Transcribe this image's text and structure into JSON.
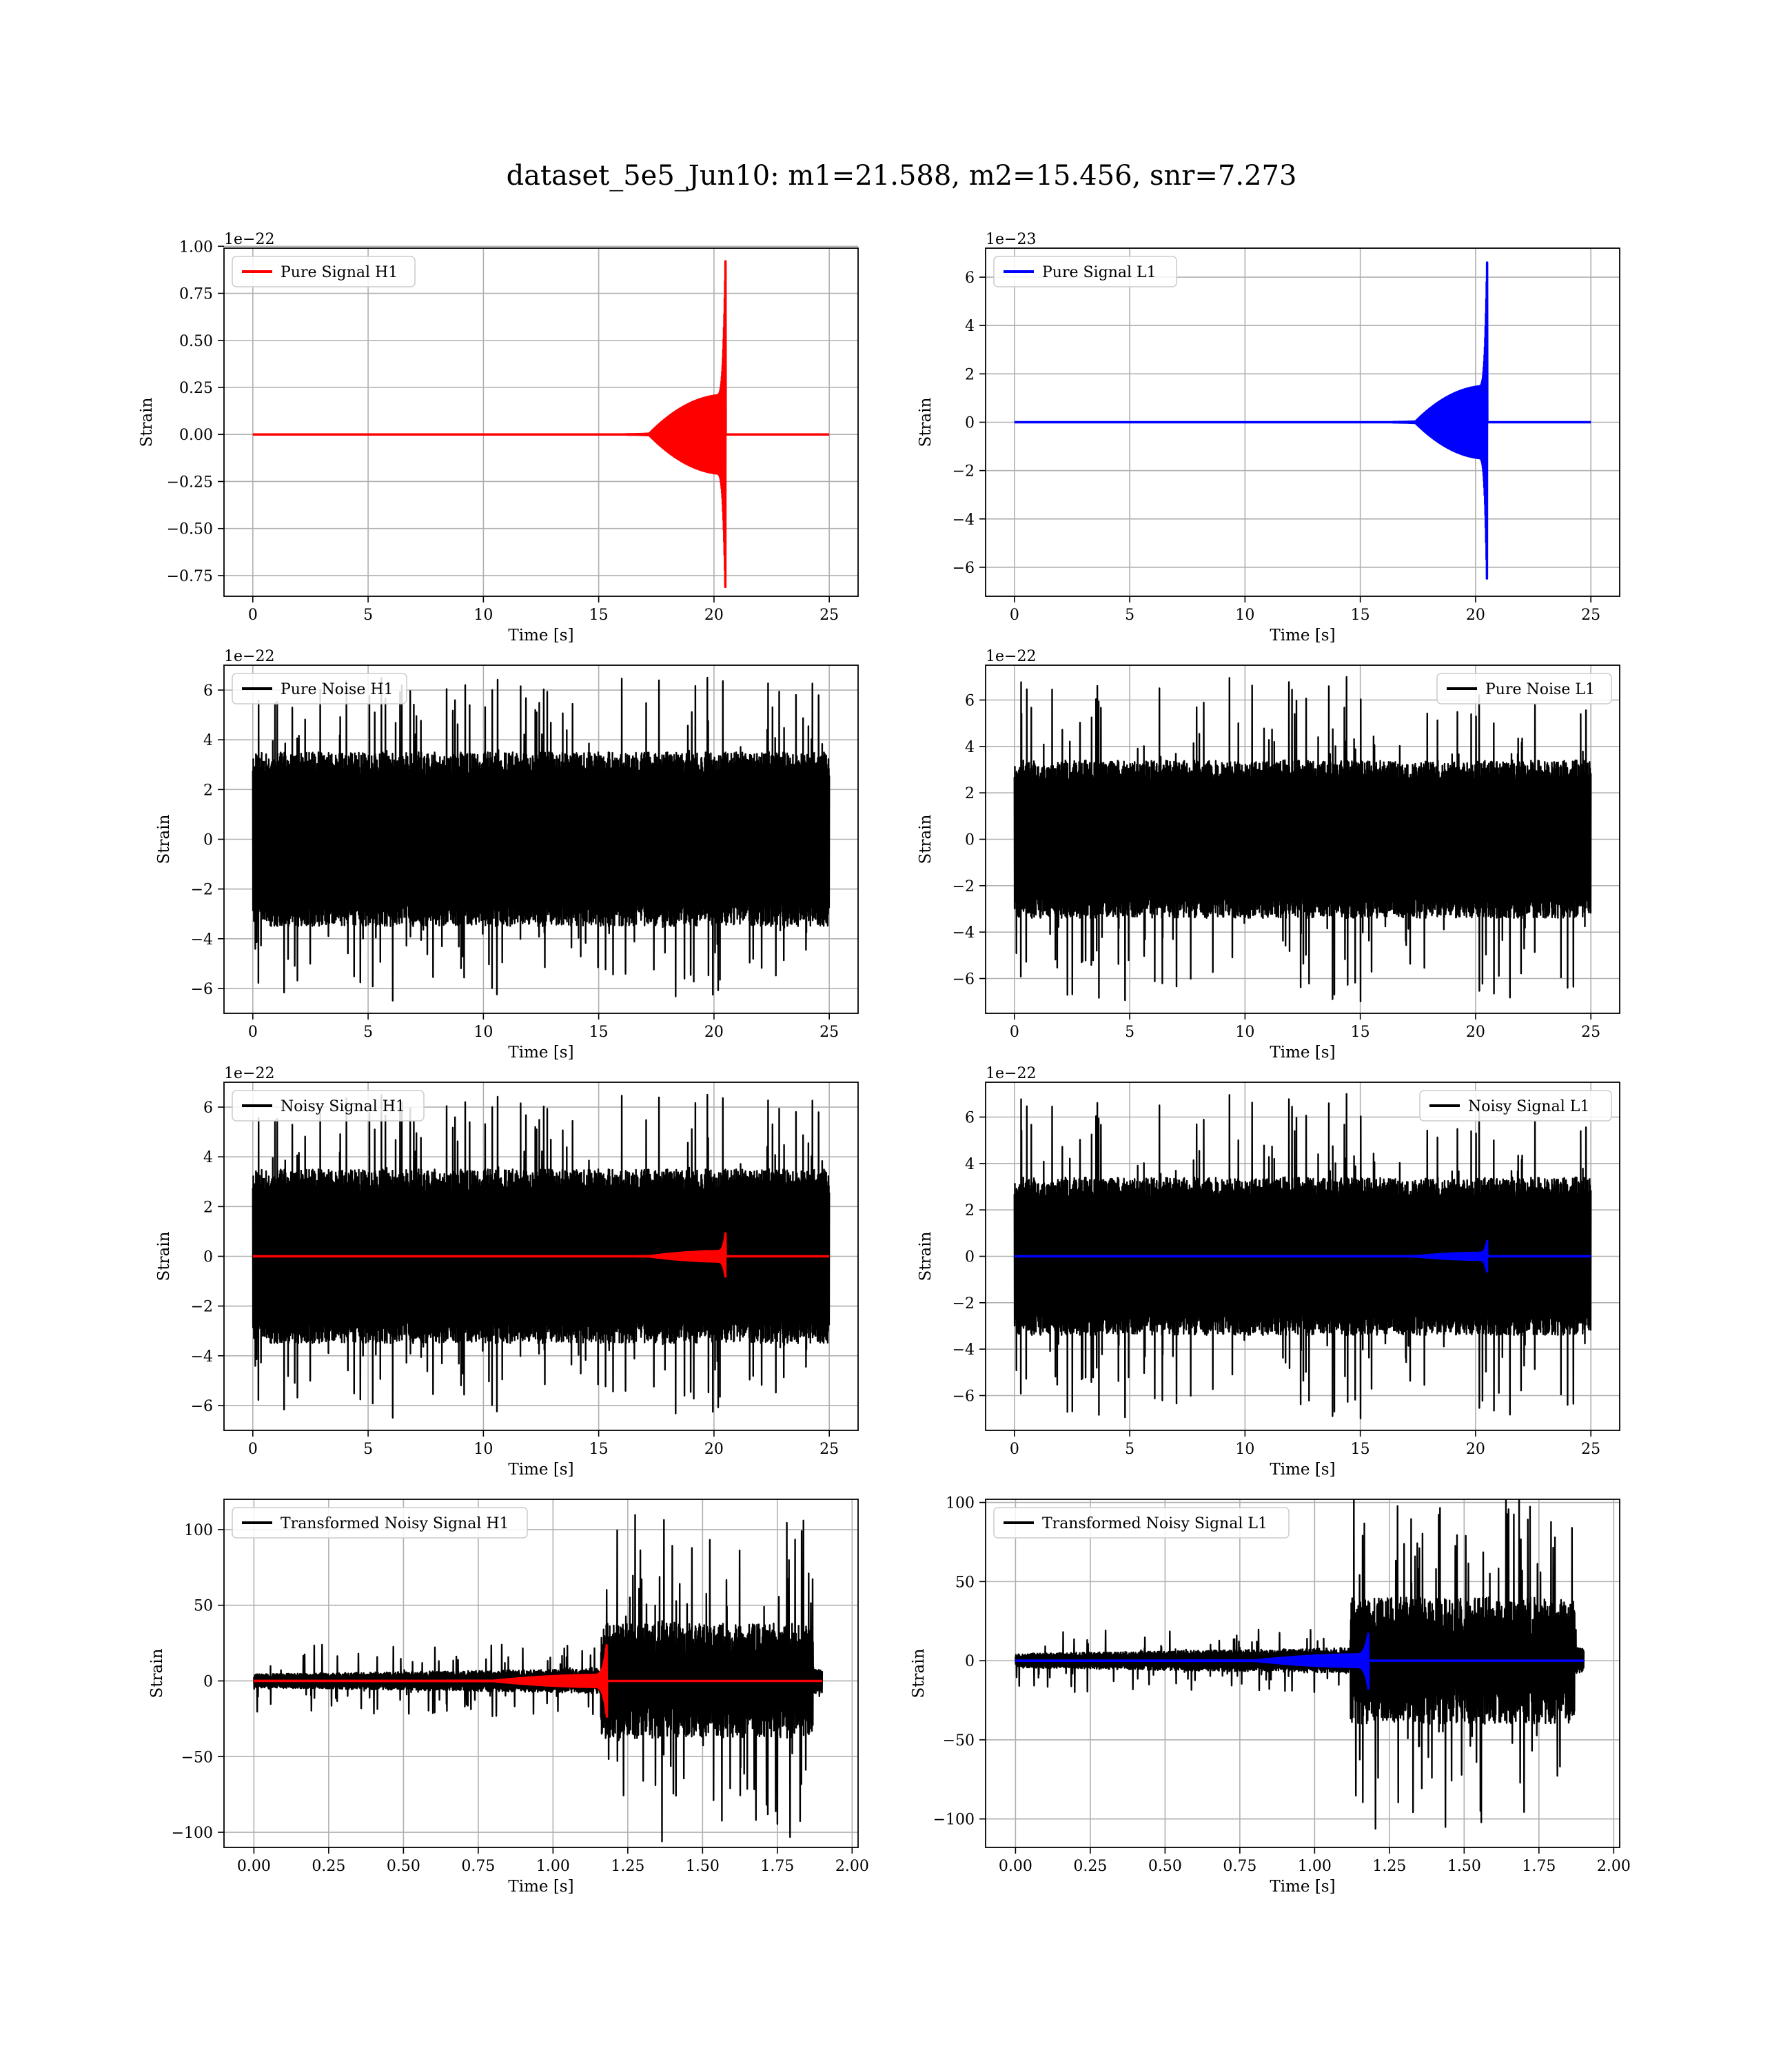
{
  "figure": {
    "title": "dataset_5e5_Jun10: m1=21.588, m2=15.456, snr=7.273"
  },
  "colors": {
    "h1": "#ff0000",
    "l1": "#0000ff",
    "noise": "#000000",
    "grid": "#b0b0b0"
  },
  "chart_data": [
    {
      "type": "line",
      "panel": "pure-signal-h1",
      "xlabel": "Time [s]",
      "ylabel": "Strain",
      "offset_text": "1e−22",
      "xlim": [
        -1.25,
        26.25
      ],
      "ylim": [
        -0.86,
        0.99
      ],
      "xticks": [
        0,
        5,
        10,
        15,
        20,
        25
      ],
      "xtick_labels": [
        "0",
        "5",
        "10",
        "15",
        "20",
        "25"
      ],
      "yticks": [
        -0.75,
        -0.5,
        -0.25,
        0.0,
        0.25,
        0.5,
        0.75,
        1.0
      ],
      "ytick_labels": [
        "−0.75",
        "−0.50",
        "−0.25",
        "0.00",
        "0.25",
        "0.50",
        "0.75",
        "1.00"
      ],
      "legend_loc": "upper left",
      "series": [
        {
          "name": "Pure Signal H1",
          "color": "#ff0000",
          "kind": "chirp",
          "x_start": 0,
          "x_end": 25,
          "t_merge": 20.5,
          "onset": 17.2,
          "plateau": 0.21,
          "peak_pos": 0.92,
          "peak_neg": -0.86
        }
      ]
    },
    {
      "type": "line",
      "panel": "pure-signal-l1",
      "xlabel": "Time [s]",
      "ylabel": "Strain",
      "offset_text": "1e−23",
      "xlim": [
        -1.25,
        26.25
      ],
      "ylim": [
        -7.2,
        7.2
      ],
      "xticks": [
        0,
        5,
        10,
        15,
        20,
        25
      ],
      "xtick_labels": [
        "0",
        "5",
        "10",
        "15",
        "20",
        "25"
      ],
      "yticks": [
        -6,
        -4,
        -2,
        0,
        2,
        4,
        6
      ],
      "ytick_labels": [
        "−6",
        "−4",
        "−2",
        "0",
        "2",
        "4",
        "6"
      ],
      "legend_loc": "upper left",
      "series": [
        {
          "name": "Pure Signal L1",
          "color": "#0000ff",
          "kind": "chirp",
          "x_start": 0,
          "x_end": 25,
          "t_merge": 20.5,
          "onset": 17.4,
          "plateau": 1.5,
          "peak_pos": 6.6,
          "peak_neg": -6.9
        }
      ]
    },
    {
      "type": "line",
      "panel": "pure-noise-h1",
      "xlabel": "Time [s]",
      "ylabel": "Strain",
      "offset_text": "1e−22",
      "xlim": [
        -1.25,
        26.25
      ],
      "ylim": [
        -7.0,
        7.0
      ],
      "xticks": [
        0,
        5,
        10,
        15,
        20,
        25
      ],
      "xtick_labels": [
        "0",
        "5",
        "10",
        "15",
        "20",
        "25"
      ],
      "yticks": [
        -6,
        -4,
        -2,
        0,
        2,
        4,
        6
      ],
      "ytick_labels": [
        "−6",
        "−4",
        "−2",
        "0",
        "2",
        "4",
        "6"
      ],
      "legend_loc": "upper left",
      "series": [
        {
          "name": "Pure Noise H1",
          "color": "#000000",
          "kind": "noise",
          "x_start": 0,
          "x_end": 25,
          "band": 3.5,
          "max_excursion": 6.5,
          "seed": 11
        }
      ]
    },
    {
      "type": "line",
      "panel": "pure-noise-l1",
      "xlabel": "Time [s]",
      "ylabel": "Strain",
      "offset_text": "1e−22",
      "xlim": [
        -1.25,
        26.25
      ],
      "ylim": [
        -7.5,
        7.5
      ],
      "xticks": [
        0,
        5,
        10,
        15,
        20,
        25
      ],
      "xtick_labels": [
        "0",
        "5",
        "10",
        "15",
        "20",
        "25"
      ],
      "yticks": [
        -6,
        -4,
        -2,
        0,
        2,
        4,
        6
      ],
      "ytick_labels": [
        "−6",
        "−4",
        "−2",
        "0",
        "2",
        "4",
        "6"
      ],
      "legend_loc": "upper right",
      "series": [
        {
          "name": "Pure Noise L1",
          "color": "#000000",
          "kind": "noise",
          "x_start": 0,
          "x_end": 25,
          "band": 3.4,
          "max_excursion": 7.0,
          "seed": 23
        }
      ]
    },
    {
      "type": "line",
      "panel": "noisy-signal-h1",
      "xlabel": "Time [s]",
      "ylabel": "Strain",
      "offset_text": "1e−22",
      "xlim": [
        -1.25,
        26.25
      ],
      "ylim": [
        -7.0,
        7.0
      ],
      "xticks": [
        0,
        5,
        10,
        15,
        20,
        25
      ],
      "xtick_labels": [
        "0",
        "5",
        "10",
        "15",
        "20",
        "25"
      ],
      "yticks": [
        -6,
        -4,
        -2,
        0,
        2,
        4,
        6
      ],
      "ytick_labels": [
        "−6",
        "−4",
        "−2",
        "0",
        "2",
        "4",
        "6"
      ],
      "legend_loc": "upper left",
      "series": [
        {
          "name": "Noisy Signal H1",
          "color": "#000000",
          "kind": "noise",
          "x_start": 0,
          "x_end": 25,
          "band": 3.5,
          "max_excursion": 6.5,
          "seed": 11
        },
        {
          "color": "#ff0000",
          "kind": "chirp",
          "x_start": 0,
          "x_end": 25,
          "t_merge": 20.5,
          "onset": 17.2,
          "plateau": 0.21,
          "peak_pos": 0.92,
          "peak_neg": -0.86
        }
      ]
    },
    {
      "type": "line",
      "panel": "noisy-signal-l1",
      "xlabel": "Time [s]",
      "ylabel": "Strain",
      "offset_text": "1e−22",
      "xlim": [
        -1.25,
        26.25
      ],
      "ylim": [
        -7.5,
        7.5
      ],
      "xticks": [
        0,
        5,
        10,
        15,
        20,
        25
      ],
      "xtick_labels": [
        "0",
        "5",
        "10",
        "15",
        "20",
        "25"
      ],
      "yticks": [
        -6,
        -4,
        -2,
        0,
        2,
        4,
        6
      ],
      "ytick_labels": [
        "−6",
        "−4",
        "−2",
        "0",
        "2",
        "4",
        "6"
      ],
      "legend_loc": "upper right",
      "series": [
        {
          "name": "Noisy Signal L1",
          "color": "#000000",
          "kind": "noise",
          "x_start": 0,
          "x_end": 25,
          "band": 3.4,
          "max_excursion": 7.0,
          "seed": 23
        },
        {
          "color": "#0000ff",
          "kind": "chirp",
          "x_start": 0,
          "x_end": 25,
          "t_merge": 20.5,
          "onset": 17.4,
          "plateau": 0.15,
          "peak_pos": 0.66,
          "peak_neg": -0.69
        }
      ]
    },
    {
      "type": "line",
      "panel": "transformed-noisy-signal-h1",
      "xlabel": "Time [s]",
      "ylabel": "Strain",
      "offset_text": "",
      "xlim": [
        -0.1,
        2.02
      ],
      "ylim": [
        -110,
        120
      ],
      "xticks": [
        0.0,
        0.25,
        0.5,
        0.75,
        1.0,
        1.25,
        1.5,
        1.75,
        2.0
      ],
      "xtick_labels": [
        "0.00",
        "0.25",
        "0.50",
        "0.75",
        "1.00",
        "1.25",
        "1.50",
        "1.75",
        "2.00"
      ],
      "yticks": [
        -100,
        -50,
        0,
        50,
        100
      ],
      "ytick_labels": [
        "−100",
        "−50",
        "0",
        "50",
        "100"
      ],
      "legend_loc": "upper left",
      "series": [
        {
          "name": "Transformed Noisy Signal H1",
          "color": "#000000",
          "kind": "whitened",
          "x_start": 0,
          "x_end": 1.9,
          "t_jump": 1.16,
          "t_end": 1.87,
          "band_low": 6,
          "max_low": 24,
          "band_high": 38,
          "max_high": 110,
          "seed": 37
        },
        {
          "color": "#ff0000",
          "kind": "chirp",
          "x_start": 0,
          "x_end": 1.9,
          "t_merge": 1.18,
          "onset": 0.8,
          "plateau": 4,
          "peak_pos": 25,
          "peak_neg": -24
        }
      ]
    },
    {
      "type": "line",
      "panel": "transformed-noisy-signal-l1",
      "xlabel": "Time [s]",
      "ylabel": "Strain",
      "offset_text": "",
      "xlim": [
        -0.1,
        2.02
      ],
      "ylim": [
        -118,
        102
      ],
      "xticks": [
        0.0,
        0.25,
        0.5,
        0.75,
        1.0,
        1.25,
        1.5,
        1.75,
        2.0
      ],
      "xtick_labels": [
        "0.00",
        "0.25",
        "0.50",
        "0.75",
        "1.00",
        "1.25",
        "1.50",
        "1.75",
        "2.00"
      ],
      "yticks": [
        -100,
        -50,
        0,
        50,
        100
      ],
      "ytick_labels": [
        "−100",
        "−50",
        "0",
        "50",
        "100"
      ],
      "legend_loc": "upper left",
      "series": [
        {
          "name": "Transformed Noisy Signal L1",
          "color": "#000000",
          "kind": "whitened",
          "x_start": 0,
          "x_end": 1.9,
          "t_jump": 1.12,
          "t_end": 1.87,
          "band_low": 6,
          "max_low": 20,
          "band_high": 40,
          "max_high": 108,
          "seed": 53
        },
        {
          "color": "#0000ff",
          "kind": "chirp",
          "x_start": 0,
          "x_end": 1.9,
          "t_merge": 1.18,
          "onset": 0.8,
          "plateau": 4,
          "peak_pos": 18,
          "peak_neg": -18
        }
      ]
    }
  ]
}
